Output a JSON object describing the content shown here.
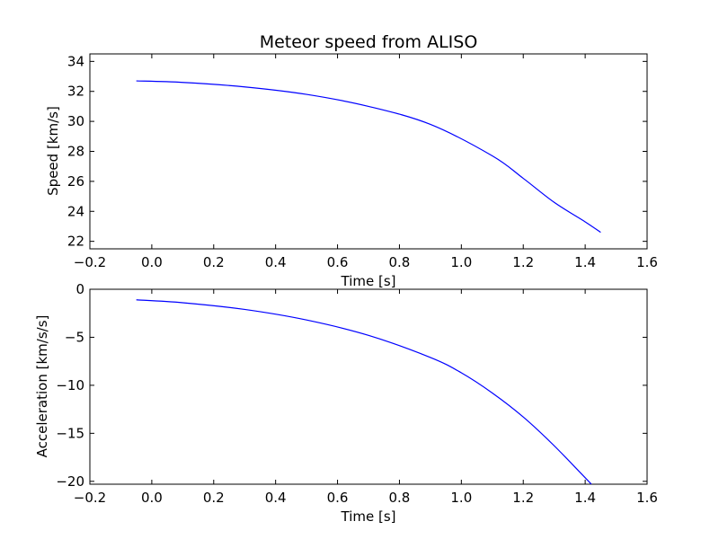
{
  "chart_data": [
    {
      "type": "line",
      "title": "Meteor speed from  ALISO",
      "xlabel": "Time [s]",
      "ylabel": "Speed [km/s]",
      "xlim": [
        -0.2,
        1.6
      ],
      "ylim": [
        21.5,
        34.5
      ],
      "xticks": [
        -0.2,
        0.0,
        0.2,
        0.4,
        0.6,
        0.8,
        1.0,
        1.2,
        1.4,
        1.6
      ],
      "xtick_labels": [
        "−0.2",
        "0.0",
        "0.2",
        "0.4",
        "0.6",
        "0.8",
        "1.0",
        "1.2",
        "1.4",
        "1.6"
      ],
      "yticks": [
        22,
        24,
        26,
        28,
        30,
        32,
        34
      ],
      "ytick_labels": [
        "22",
        "24",
        "26",
        "28",
        "30",
        "32",
        "34"
      ],
      "grid": false,
      "color": "#0000ff",
      "series": [
        {
          "x": [
            -0.05,
            0.1,
            0.3,
            0.5,
            0.7,
            0.9,
            1.1,
            1.2,
            1.3,
            1.4,
            1.45
          ],
          "y": [
            32.7,
            32.6,
            32.3,
            31.8,
            31.0,
            29.8,
            27.7,
            26.2,
            24.6,
            23.3,
            22.6
          ]
        }
      ]
    },
    {
      "type": "line",
      "title": "",
      "xlabel": "Time [s]",
      "ylabel": "Acceleration [km/s/s]",
      "xlim": [
        -0.2,
        1.6
      ],
      "ylim": [
        -20.3,
        0
      ],
      "xticks": [
        -0.2,
        0.0,
        0.2,
        0.4,
        0.6,
        0.8,
        1.0,
        1.2,
        1.4,
        1.6
      ],
      "xtick_labels": [
        "−0.2",
        "0.0",
        "0.2",
        "0.4",
        "0.6",
        "0.8",
        "1.0",
        "1.2",
        "1.4",
        "1.6"
      ],
      "yticks": [
        0,
        -5,
        -10,
        -15,
        -20
      ],
      "ytick_labels": [
        "0",
        "−5",
        "−10",
        "−15",
        "−20"
      ],
      "grid": false,
      "color": "#0000ff",
      "series": [
        {
          "x": [
            -0.05,
            0.1,
            0.3,
            0.5,
            0.7,
            0.9,
            1.0,
            1.1,
            1.2,
            1.3,
            1.42
          ],
          "y": [
            -1.1,
            -1.4,
            -2.1,
            -3.2,
            -4.8,
            -7.1,
            -8.7,
            -10.8,
            -13.3,
            -16.3,
            -20.3
          ]
        }
      ]
    }
  ]
}
